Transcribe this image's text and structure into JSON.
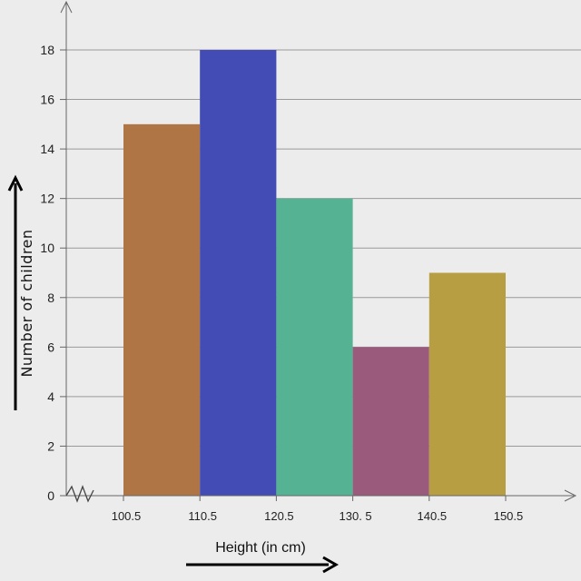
{
  "chart_data": {
    "type": "bar",
    "title": "",
    "xlabel": "Height (in cm)",
    "ylabel": "Number of children",
    "x_ticks": [
      "100.5",
      "110.5",
      "120.5",
      "130. 5",
      "140.5",
      "150.5"
    ],
    "y_ticks": [
      "0",
      "2",
      "4",
      "6",
      "8",
      "10",
      "12",
      "14",
      "16",
      "18"
    ],
    "ylim": [
      0,
      18
    ],
    "grid": true,
    "bars": [
      {
        "from": 100.5,
        "to": 110.5,
        "value": 15,
        "color": "#b07545"
      },
      {
        "from": 110.5,
        "to": 120.5,
        "value": 18,
        "color": "#434bb4"
      },
      {
        "from": 120.5,
        "to": 130.5,
        "value": 12,
        "color": "#55b394"
      },
      {
        "from": 130.5,
        "to": 140.5,
        "value": 6,
        "color": "#995a7b"
      },
      {
        "from": 140.5,
        "to": 150.5,
        "value": 9,
        "color": "#b89e42"
      }
    ],
    "axis_break_on_x": true
  }
}
